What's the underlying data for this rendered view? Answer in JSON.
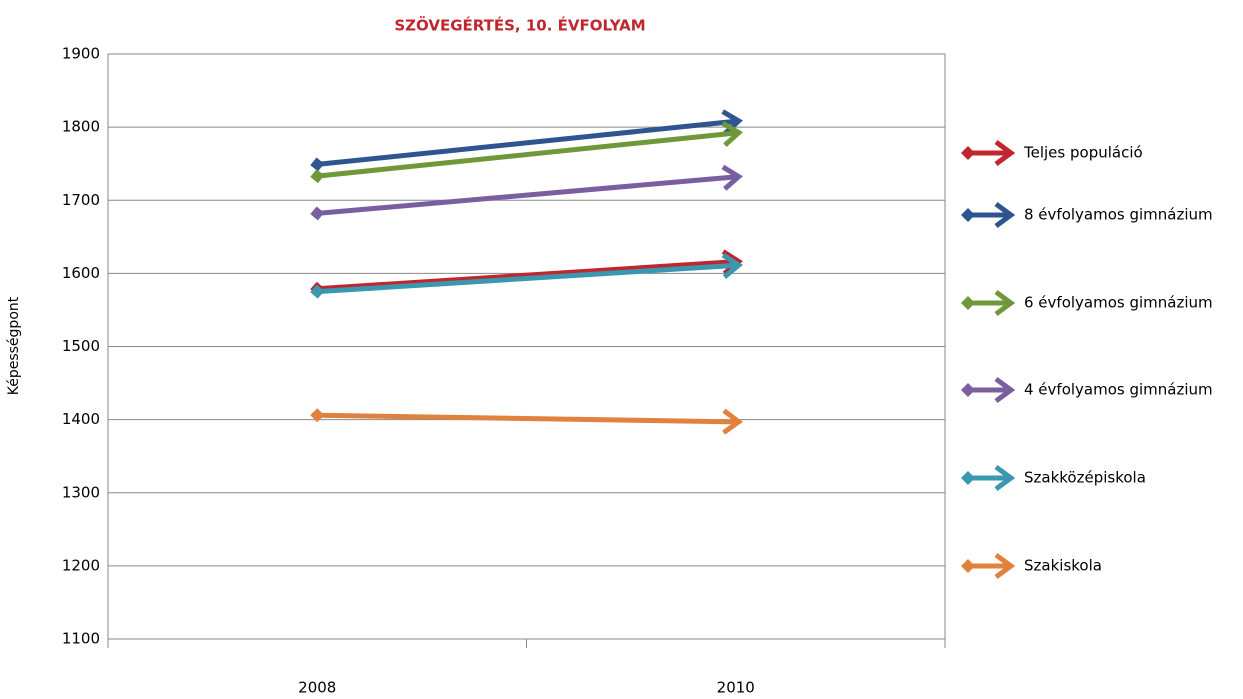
{
  "chart_data": {
    "type": "line",
    "title": "SZÖVEGÉRTÉS, 10. ÉVFOLYAM",
    "y_label": "Képességpont",
    "categories": [
      "2008",
      "2010"
    ],
    "series": [
      {
        "name": "Teljes populáció",
        "color": "#c0262d",
        "values": [
          1579,
          1616
        ]
      },
      {
        "name": "8 évfolyamos gimnázium",
        "color": "#2e5590",
        "values": [
          1749,
          1808
        ]
      },
      {
        "name": "6 évfolyamos gimnázium",
        "color": "#71973b",
        "values": [
          1733,
          1792
        ]
      },
      {
        "name": "4 évfolyamos gimnázium",
        "color": "#7a5ea0",
        "values": [
          1682,
          1732
        ]
      },
      {
        "name": "Szakközépiskola",
        "color": "#3a97b0",
        "values": [
          1575,
          1611
        ]
      },
      {
        "name": "Szakiskola",
        "color": "#e0823d",
        "values": [
          1406,
          1397
        ]
      }
    ],
    "ylim": [
      1100,
      1900
    ],
    "yticks": [
      1100,
      1200,
      1300,
      1400,
      1500,
      1600,
      1700,
      1800,
      1900
    ],
    "grid": true,
    "legend": "right"
  }
}
